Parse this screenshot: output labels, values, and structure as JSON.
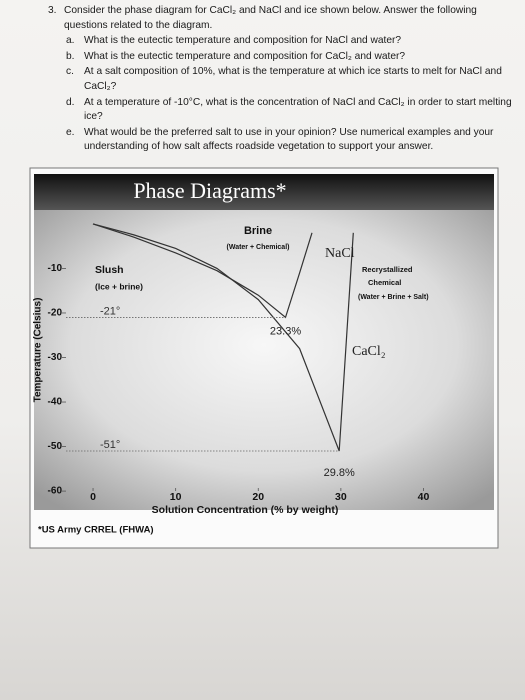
{
  "question": {
    "number": "3.",
    "text": "Consider the phase diagram for CaCl₂ and NaCl and ice shown below. Answer the following questions related to the diagram.",
    "items": [
      {
        "label": "a.",
        "text": "What is the eutectic temperature and composition for NaCl and water?"
      },
      {
        "label": "b.",
        "text": "What is the eutectic temperature and composition for CaCl₂ and water?"
      },
      {
        "label": "c.",
        "text": "At a salt composition of 10%, what is the temperature at which ice starts to melt for NaCl and CaCl₂?"
      },
      {
        "label": "d.",
        "text": "At a temperature of -10°C, what is the concentration of NaCl and CaCl₂ in order to start melting ice?"
      },
      {
        "label": "e.",
        "text": "What would be the preferred salt to use in your opinion? Use numerical examples and your understanding of how salt affects roadside vegetation to support your answer."
      }
    ]
  },
  "chart_data": {
    "type": "line",
    "title": "Phase Diagrams*",
    "x_label": "Solution Concentration (% by weight)",
    "y_label": "Temperature (Celsius)",
    "xlim": [
      -4,
      42
    ],
    "ylim": [
      -62,
      2
    ],
    "xticks": [
      0,
      10,
      20,
      30,
      40
    ],
    "yticks": [
      -10,
      -20,
      -30,
      -40,
      -50,
      -60
    ],
    "series": [
      {
        "name": "NaCl",
        "color": "#333333",
        "x": [
          0,
          5,
          10,
          15,
          20,
          23.3,
          25,
          26.5
        ],
        "values": [
          0,
          -3,
          -6.5,
          -10.5,
          -16,
          -21,
          -11,
          -2
        ]
      },
      {
        "name": "CaCl₂",
        "color": "#333333",
        "x": [
          0,
          5,
          10,
          15,
          20,
          25,
          29.8,
          30.7,
          31.5
        ],
        "values": [
          0,
          -2.5,
          -5.5,
          -10,
          -17,
          -28,
          -51,
          -25,
          -2
        ]
      }
    ],
    "eutectic_labels": [
      {
        "temperature": "-21°",
        "composition": "23.3%"
      },
      {
        "temperature": "-51°",
        "composition": "29.8%"
      }
    ],
    "region_labels": [
      "Brine",
      "(Water + Chemical)",
      "Slush",
      "(Ice + brine)",
      "Recrystallized",
      "Chemical",
      "(Water + Brine + Salt)"
    ],
    "source": "*US Army CRREL (FHWA)"
  }
}
